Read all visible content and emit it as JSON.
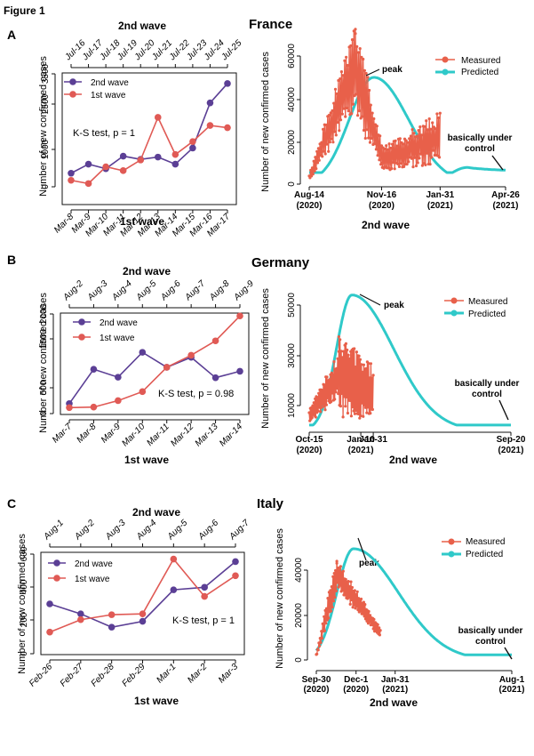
{
  "figure_label": "Figure 1",
  "colors": {
    "wave2": "#5b3f95",
    "wave1": "#e05a55",
    "measured": "#e8604a",
    "predicted": "#2fc9c9",
    "axis": "#111111"
  },
  "panels": [
    {
      "letter": "A",
      "country": "France",
      "left": {
        "top_axis_title": "2nd wave",
        "bottom_axis_title": "1st wave",
        "ylabel": "Number of new confirmed cases",
        "annotation": "K-S test,  p = 1",
        "legend": [
          "2nd wave",
          "1st wave"
        ]
      },
      "right": {
        "xlabel": "2nd wave",
        "ylabel": "Number of new confirmed cases",
        "legend": [
          "Measured",
          "Predicted"
        ],
        "peak_label": "peak",
        "control_label_1": "basically under",
        "control_label_2": "control"
      }
    },
    {
      "letter": "B",
      "country": "Germany",
      "left": {
        "top_axis_title": "2nd wave",
        "bottom_axis_title": "1st wave",
        "ylabel": "Number of new confirmed cases",
        "annotation": "K-S test,  p = 0.98",
        "legend": [
          "2nd wave",
          "1st wave"
        ]
      },
      "right": {
        "xlabel": "2nd wave",
        "ylabel": "Number of new confirmed cases",
        "legend": [
          "Measured",
          "Predicted"
        ],
        "peak_label": "peak",
        "control_label_1": "basically under",
        "control_label_2": "control"
      }
    },
    {
      "letter": "C",
      "country": "Italy",
      "left": {
        "top_axis_title": "2nd wave",
        "bottom_axis_title": "1st wave",
        "ylabel": "Number of new confirmed cases",
        "annotation": "K-S test,  p = 1",
        "legend": [
          "2nd wave",
          "1st wave"
        ]
      },
      "right": {
        "xlabel": "2nd wave",
        "ylabel": "Number of new confirmed cases",
        "legend": [
          "Measured",
          "Predicted"
        ],
        "peak_label": "peak",
        "control_label_1": "basically under",
        "control_label_2": "control"
      }
    }
  ],
  "chart_data": [
    {
      "type": "line",
      "panel": "A-left",
      "bottom_categories": [
        "Mar-8",
        "Mar-9",
        "Mar-10",
        "Mar-11",
        "Mar-12",
        "Mar-13",
        "Mar-14",
        "Mar-15",
        "Mar-16",
        "Mar-17"
      ],
      "top_categories": [
        "Jul-16",
        "Jul-17",
        "Jul-18",
        "Jul-19",
        "Jul-20",
        "Jul-21",
        "Jul-22",
        "Jul-23",
        "Jul-24",
        "Jul-25"
      ],
      "yticks": [
        1000,
        2500,
        3500
      ],
      "ylim": [
        0,
        3500
      ],
      "series": [
        {
          "name": "2nd wave",
          "values": [
            420,
            700,
            560,
            950,
            850,
            920,
            700,
            1200,
            2600,
            3200
          ]
        },
        {
          "name": "1st wave",
          "values": [
            200,
            100,
            620,
            500,
            830,
            2150,
            1000,
            1400,
            1900,
            1830
          ]
        }
      ]
    },
    {
      "type": "line",
      "panel": "A-right",
      "xticks": [
        "Aug-14\n(2020)",
        "Nov-16\n(2020)",
        "Jan-31\n(2021)",
        "Apr-26\n(2021)"
      ],
      "xtick_days": [
        0,
        94,
        170,
        255
      ],
      "yticks": [
        0,
        20000,
        40000,
        60000
      ],
      "ylim": [
        0,
        62000
      ],
      "series": [
        {
          "name": "Measured",
          "segments": [
            {
              "x0": 0,
              "x1": 60,
              "start": 3000,
              "end": 55000,
              "amp": 0.38,
              "seed": 1
            },
            {
              "x0": 60,
              "x1": 95,
              "start": 55000,
              "end": 12000,
              "amp": 0.45,
              "seed": 2
            },
            {
              "x0": 95,
              "x1": 170,
              "start": 11000,
              "end": 22000,
              "amp": 0.55,
              "seed": 3
            }
          ]
        },
        {
          "name": "Predicted",
          "peak_day": 84,
          "peak_value": 50000,
          "rise": 32,
          "fall": 45,
          "tail_day": 255,
          "tail_value": 6000,
          "shoulder_day": 205,
          "shoulder_value": 7800
        }
      ]
    },
    {
      "type": "line",
      "panel": "B-left",
      "bottom_categories": [
        "Mar-7",
        "Mar-8",
        "Mar-9",
        "Mar-10",
        "Mar-11",
        "Mar-12",
        "Mar-13",
        "Mar-14"
      ],
      "top_categories": [
        "Aug-2",
        "Aug-3",
        "Aug-4",
        "Aug-5",
        "Aug-6",
        "Aug-7",
        "Aug-8",
        "Aug-9"
      ],
      "yticks": [
        0,
        500,
        1500,
        2000
      ],
      "ylim": [
        0,
        2100
      ],
      "series": [
        {
          "name": "2nd wave",
          "values": [
            200,
            890,
            730,
            1230,
            930,
            1130,
            720,
            850
          ]
        },
        {
          "name": "1st wave",
          "values": [
            120,
            130,
            260,
            440,
            930,
            1170,
            1460,
            1960
          ]
        }
      ]
    },
    {
      "type": "line",
      "panel": "B-right",
      "xticks": [
        "Oct-15\n(2020)",
        "Jan-10\n(2021)",
        "Jan-31",
        "Sep-20\n(2021)"
      ],
      "xtick_days": [
        0,
        87,
        108,
        340
      ],
      "yticks": [
        10000,
        30000,
        50000
      ],
      "ylim": [
        0,
        56000
      ],
      "series": [
        {
          "name": "Measured",
          "segments": [
            {
              "x0": 0,
              "x1": 50,
              "start": 6000,
              "end": 22000,
              "amp": 0.45,
              "seed": 4
            },
            {
              "x0": 50,
              "x1": 108,
              "start": 22000,
              "end": 15000,
              "amp": 0.75,
              "seed": 5
            }
          ]
        },
        {
          "name": "Predicted",
          "peak_day": 72,
          "peak_value": 54000,
          "rise": 26,
          "fall": 70,
          "tail_day": 340,
          "tail_value": 2500
        }
      ]
    },
    {
      "type": "line",
      "panel": "C-left",
      "bottom_categories": [
        "Feb-26",
        "Feb-27",
        "Feb-28",
        "Feb-29",
        "Mar-1",
        "Mar-2",
        "Mar-3"
      ],
      "top_categories": [
        "Aug-1",
        "Aug-2",
        "Aug-3",
        "Aug-4",
        "Aug-5",
        "Aug-6",
        "Aug-7"
      ],
      "yticks": [
        0,
        200,
        400,
        600
      ],
      "ylim": [
        0,
        620
      ],
      "series": [
        {
          "name": "2nd wave",
          "values": [
            300,
            240,
            160,
            195,
            385,
            400,
            555
          ]
        },
        {
          "name": "1st wave",
          "values": [
            130,
            205,
            235,
            240,
            570,
            345,
            470
          ]
        }
      ]
    },
    {
      "type": "line",
      "panel": "C-right",
      "xticks": [
        "Sep-30\n(2020)",
        "Dec-1\n(2020)",
        "Jan-31\n(2021)",
        "Aug-1\n(2021)"
      ],
      "xtick_days": [
        0,
        62,
        123,
        305
      ],
      "yticks": [
        0,
        20000,
        40000
      ],
      "ylim": [
        0,
        50000
      ],
      "series": [
        {
          "name": "Measured",
          "segments": [
            {
              "x0": 0,
              "x1": 32,
              "start": 2000,
              "end": 38000,
              "amp": 0.25,
              "seed": 6
            },
            {
              "x0": 32,
              "x1": 100,
              "start": 38000,
              "end": 12000,
              "amp": 0.18,
              "seed": 7
            }
          ]
        },
        {
          "name": "Predicted",
          "peak_day": 58,
          "peak_value": 49500,
          "rise": 26,
          "fall": 70,
          "tail_day": 305,
          "tail_value": 2500
        }
      ]
    }
  ]
}
